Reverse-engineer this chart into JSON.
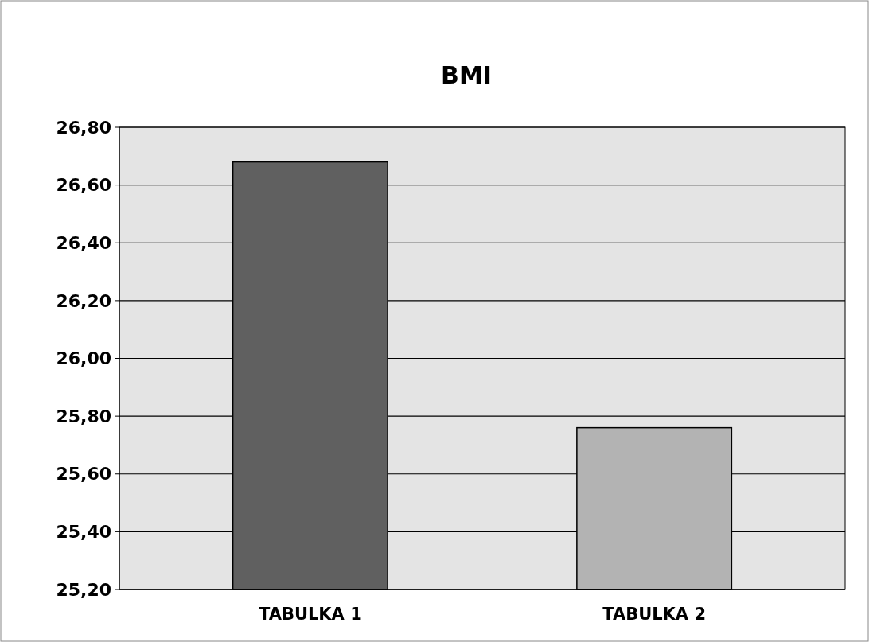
{
  "chart_data": {
    "type": "bar",
    "title": "BMI",
    "categories": [
      "TABULKA 1",
      "TABULKA 2"
    ],
    "values": [
      26.68,
      25.76
    ],
    "colors": [
      "#606060",
      "#b3b3b3"
    ],
    "ylim": [
      25.2,
      26.8
    ],
    "yticks": [
      {
        "value": 25.2,
        "label": "25,20"
      },
      {
        "value": 25.4,
        "label": "25,40"
      },
      {
        "value": 25.6,
        "label": "25,60"
      },
      {
        "value": 25.8,
        "label": "25,80"
      },
      {
        "value": 26.0,
        "label": "26,00"
      },
      {
        "value": 26.2,
        "label": "26,20"
      },
      {
        "value": 26.4,
        "label": "26,40"
      },
      {
        "value": 26.6,
        "label": "26,60"
      },
      {
        "value": 26.8,
        "label": "26,80"
      }
    ],
    "grid": "y"
  }
}
